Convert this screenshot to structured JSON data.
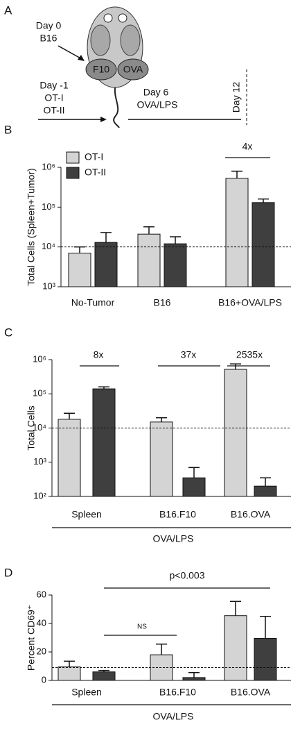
{
  "diagram": {
    "panel_label": "A",
    "day0": "Day 0",
    "b16": "B16",
    "f10": "F10",
    "ova": "OVA",
    "dayminus1": "Day -1",
    "ot1": "OT-I",
    "ot2": "OT-II",
    "day6": "Day 6",
    "ovalps": "OVA/LPS",
    "day12": "Day 12"
  },
  "chart_data": [
    {
      "panel_label": "B",
      "type": "bar",
      "log_scale": true,
      "legend": true,
      "legend_position": "upper left",
      "ylabel": "Total Cells (Spleen+Tumor)",
      "categories": [
        "No-Tumor",
        "B16",
        "B16+OVA/LPS"
      ],
      "series": [
        {
          "name": "OT-I",
          "color": "#d4d4d4",
          "values": [
            7000,
            21000,
            530000
          ],
          "errors": [
            3000,
            11000,
            270000
          ]
        },
        {
          "name": "OT-II",
          "color": "#3f3f3f",
          "values": [
            13000,
            12000,
            130000
          ],
          "errors": [
            10000,
            6000,
            30000
          ]
        }
      ],
      "ylim": [
        1000,
        1000000
      ],
      "yticks": [
        {
          "value": 1000,
          "label": "10³"
        },
        {
          "value": 10000,
          "label": "10⁴"
        },
        {
          "value": 100000,
          "label": "10⁵"
        },
        {
          "value": 1000000,
          "label": "10⁶"
        }
      ],
      "reference_line": 10000,
      "annotations": [
        "4x"
      ]
    },
    {
      "panel_label": "C",
      "type": "bar",
      "log_scale": true,
      "legend": false,
      "ylabel": "Total Cells",
      "categories": [
        "Spleen",
        "B16.F10",
        "B16.OVA"
      ],
      "series": [
        {
          "color": "#d4d4d4",
          "values": [
            18000,
            15000,
            520000
          ],
          "errors": [
            9000,
            5000,
            230000
          ]
        },
        {
          "color": "#3f3f3f",
          "values": [
            140000,
            350,
            200
          ],
          "errors": [
            20000,
            350,
            150
          ]
        }
      ],
      "ylim": [
        100,
        1000000
      ],
      "yticks": [
        {
          "value": 100,
          "label": "10²"
        },
        {
          "value": 1000,
          "label": "10³"
        },
        {
          "value": 10000,
          "label": "10⁴"
        },
        {
          "value": 100000,
          "label": "10⁵"
        },
        {
          "value": 1000000,
          "label": "10⁶"
        }
      ],
      "reference_line": 10000,
      "annotations": [
        "8x",
        "37x",
        "2535x",
        "OVA/LPS"
      ]
    },
    {
      "panel_label": "D",
      "type": "bar",
      "log_scale": false,
      "legend": false,
      "ylabel": "Percent CD69⁺",
      "categories": [
        "Spleen",
        "B16.F10",
        "B16.OVA"
      ],
      "series": [
        {
          "color": "#d4d4d4",
          "values": [
            9.5,
            18,
            45.5
          ],
          "errors": [
            4,
            7.5,
            10
          ]
        },
        {
          "color": "#3f3f3f",
          "values": [
            6,
            2,
            29.5
          ],
          "errors": [
            1,
            3.5,
            15.5
          ]
        }
      ],
      "ylim": [
        0,
        60
      ],
      "yticks": [
        0,
        20,
        40,
        60
      ],
      "reference_line": 9,
      "annotations": [
        "p<0.003",
        "NS",
        "OVA/LPS"
      ]
    }
  ]
}
